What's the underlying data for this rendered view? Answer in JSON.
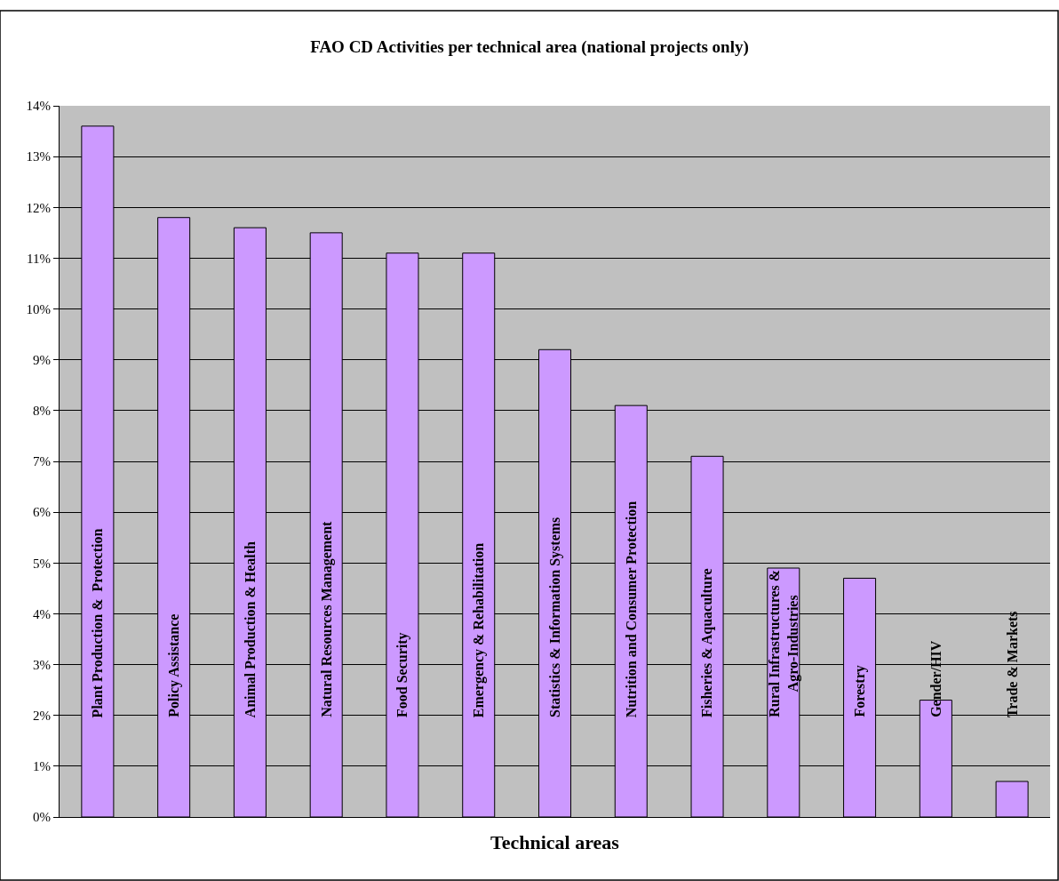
{
  "chart_data": {
    "type": "bar",
    "title": "FAO CD Activities per technical area (national projects only)",
    "xlabel": "Technical areas",
    "categories": [
      "Plant Production &  Protection",
      "Policy Assistance",
      "Animal Production & Health",
      "Natural Resources Management",
      "Food Security",
      "Emergency & Rehabilitation",
      "Statistics & Information Systems",
      "Nutrition and Consumer Protection",
      "Fisheries & Aquaculture",
      "Rural Infrastructures &\nAgro-Industries",
      "Forestry",
      "Gender/HIV",
      "Trade & Markets"
    ],
    "values": [
      13.6,
      11.8,
      11.6,
      11.5,
      11.1,
      11.1,
      9.2,
      8.1,
      7.1,
      4.9,
      4.7,
      2.3,
      0.7
    ],
    "color": "#cc99ff",
    "ylim": [
      0,
      14
    ],
    "yticks": [
      {
        "value": 0,
        "label": "0%"
      },
      {
        "value": 1,
        "label": "1%"
      },
      {
        "value": 2,
        "label": "2%"
      },
      {
        "value": 3,
        "label": "3%"
      },
      {
        "value": 4,
        "label": "4%"
      },
      {
        "value": 5,
        "label": "5%"
      },
      {
        "value": 6,
        "label": "6%"
      },
      {
        "value": 7,
        "label": "7%"
      },
      {
        "value": 8,
        "label": "8%"
      },
      {
        "value": 9,
        "label": "9%"
      },
      {
        "value": 10,
        "label": "10%"
      },
      {
        "value": 11,
        "label": "11%"
      },
      {
        "value": 12,
        "label": "12%"
      },
      {
        "value": 13,
        "label": "13%"
      },
      {
        "value": 14,
        "label": "14%"
      }
    ],
    "grid": "y",
    "legend": false
  }
}
